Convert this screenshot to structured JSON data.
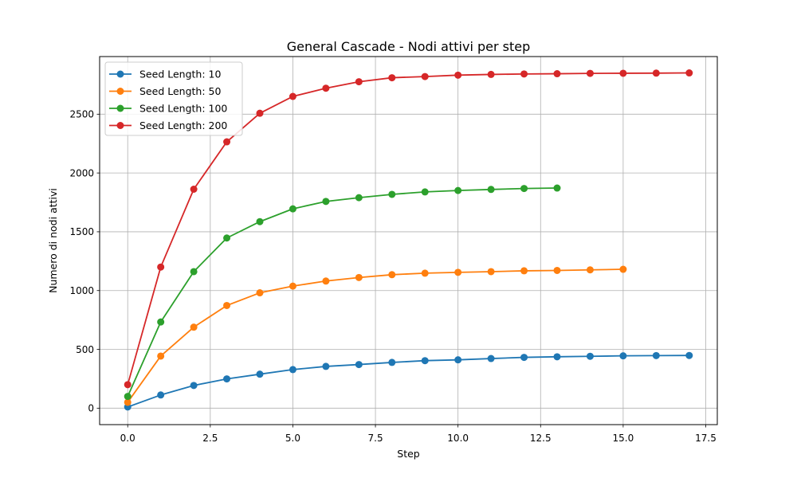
{
  "chart_data": {
    "type": "line",
    "title": "General Cascade - Nodi attivi per step",
    "xlabel": "Step",
    "ylabel": "Numero di nodi attivi",
    "xlim": [
      -0.85,
      17.85
    ],
    "ylim": [
      -140,
      2990
    ],
    "xticks": [
      0.0,
      2.5,
      5.0,
      7.5,
      10.0,
      12.5,
      15.0,
      17.5
    ],
    "xtick_labels": [
      "0.0",
      "2.5",
      "5.0",
      "7.5",
      "10.0",
      "12.5",
      "15.0",
      "17.5"
    ],
    "yticks": [
      0,
      500,
      1000,
      1500,
      2000,
      2500
    ],
    "ytick_labels": [
      "0",
      "500",
      "1000",
      "1500",
      "2000",
      "2500"
    ],
    "grid": true,
    "legend_position": "top-left",
    "series": [
      {
        "name": "Seed Length: 10",
        "color": "#1f77b4",
        "x": [
          0,
          1,
          2,
          3,
          4,
          5,
          6,
          7,
          8,
          9,
          10,
          11,
          12,
          13,
          14,
          15,
          16,
          17
        ],
        "y": [
          10,
          112,
          193,
          249,
          289,
          328,
          355,
          371,
          389,
          404,
          411,
          422,
          432,
          437,
          441,
          445,
          447,
          448
        ]
      },
      {
        "name": "Seed Length: 50",
        "color": "#ff7f0e",
        "x": [
          0,
          1,
          2,
          3,
          4,
          5,
          6,
          7,
          8,
          9,
          10,
          11,
          12,
          13,
          14,
          15
        ],
        "y": [
          50,
          443,
          689,
          873,
          981,
          1038,
          1081,
          1111,
          1135,
          1148,
          1155,
          1161,
          1168,
          1171,
          1176,
          1181
        ]
      },
      {
        "name": "Seed Length: 100",
        "color": "#2ca02c",
        "x": [
          0,
          1,
          2,
          3,
          4,
          5,
          6,
          7,
          8,
          9,
          10,
          11,
          12,
          13
        ],
        "y": [
          100,
          733,
          1161,
          1447,
          1586,
          1695,
          1758,
          1790,
          1818,
          1839,
          1851,
          1860,
          1868,
          1872
        ]
      },
      {
        "name": "Seed Length: 200",
        "color": "#d62728",
        "x": [
          0,
          1,
          2,
          3,
          4,
          5,
          6,
          7,
          8,
          9,
          10,
          11,
          12,
          13,
          14,
          15,
          16,
          17
        ],
        "y": [
          200,
          1200,
          1862,
          2265,
          2508,
          2651,
          2721,
          2776,
          2810,
          2820,
          2832,
          2838,
          2842,
          2844,
          2847,
          2848,
          2849,
          2851
        ]
      }
    ]
  }
}
